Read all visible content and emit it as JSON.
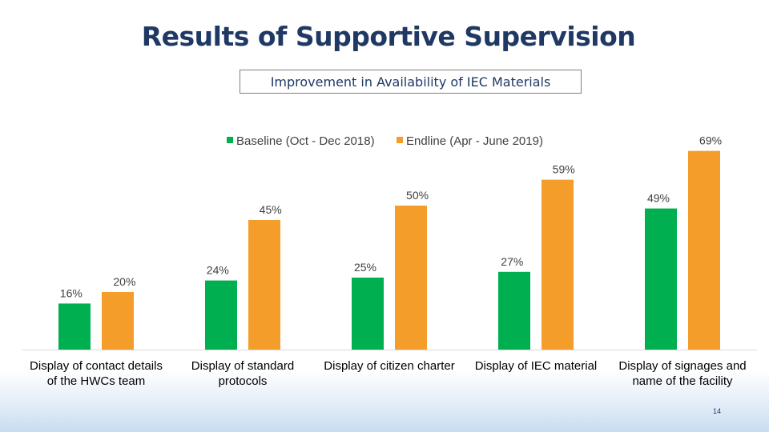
{
  "slide": {
    "title": "Results of Supportive Supervision",
    "subtitle": "Improvement in Availability of IEC Materials",
    "page_number": "14"
  },
  "colors": {
    "baseline": "#00b050",
    "endline": "#f59d2a",
    "title": "#1f3864"
  },
  "chart_data": {
    "type": "bar",
    "categories": [
      [
        "Display of contact details",
        "of the HWCs team"
      ],
      [
        "Display of standard",
        "protocols"
      ],
      [
        "Display of citizen charter"
      ],
      [
        "Display of IEC material"
      ],
      [
        "Display of signages and",
        "name of the facility"
      ]
    ],
    "series": [
      {
        "name": "Baseline (Oct - Dec 2018)",
        "values": [
          16,
          24,
          25,
          27,
          49
        ],
        "labels": [
          "16%",
          "24%",
          "25%",
          "27%",
          "49%"
        ]
      },
      {
        "name": "Endline (Apr - June 2019)",
        "values": [
          20,
          45,
          50,
          59,
          69
        ],
        "labels": [
          "20%",
          "45%",
          "50%",
          "59%",
          "69%"
        ]
      }
    ],
    "ylim": [
      0,
      70
    ],
    "legend": "top-center",
    "grid": false
  }
}
